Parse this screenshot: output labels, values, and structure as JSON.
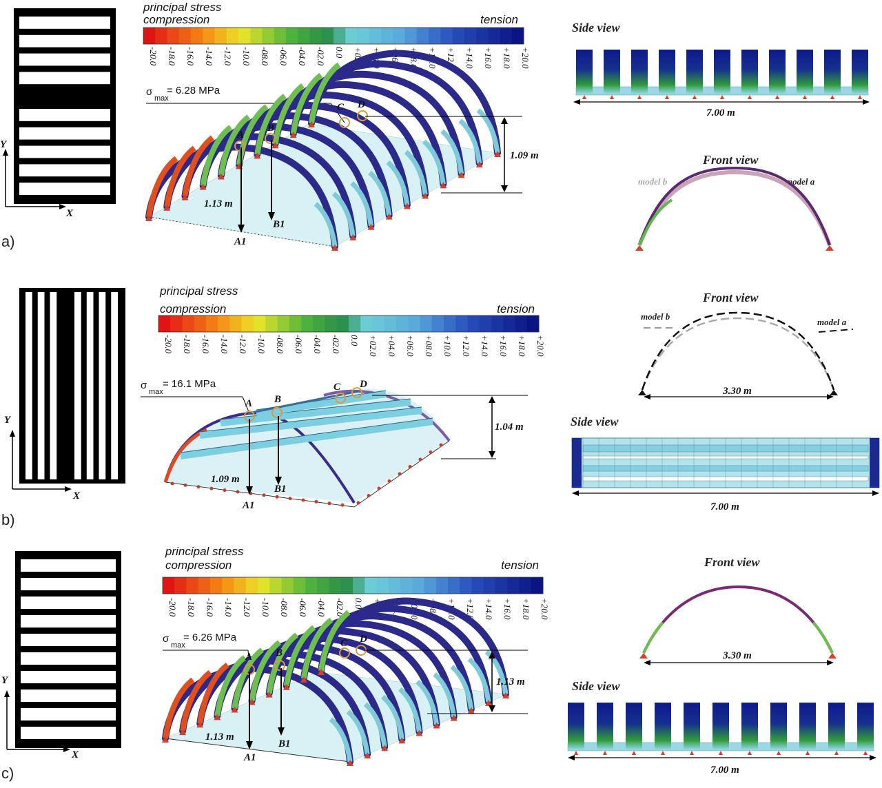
{
  "panels": [
    {
      "id": "a",
      "letter": "a)",
      "pattern": "horizontal",
      "axis_y": "Y",
      "axis_x": "X",
      "scale_title": "principal stress",
      "scale_compression": "compression",
      "scale_tension": "tension",
      "sigma_symbol": "σ",
      "sigma_sub": "max",
      "sigma_value": "= 6.28 MPa",
      "points": {
        "A": "A",
        "B": "B",
        "C": "C",
        "D": "D",
        "A1": "A1",
        "B1": "B1"
      },
      "height_left": "1.13 m",
      "height_right": "1.09 m",
      "views": [
        {
          "title": "Side view",
          "dim": "7.00 m"
        },
        {
          "title": "Front view",
          "dim": "",
          "model_a": "model a",
          "model_b": "model b"
        }
      ]
    },
    {
      "id": "b",
      "letter": "b)",
      "pattern": "vertical",
      "axis_y": "Y",
      "axis_x": "X",
      "scale_title": "principal stress",
      "scale_compression": "compression",
      "scale_tension": "tension",
      "sigma_symbol": "σ",
      "sigma_sub": "max",
      "sigma_value": "= 16.1 MPa",
      "points": {
        "A": "A",
        "B": "B",
        "C": "C",
        "D": "D",
        "A1": "A1",
        "B1": "B1"
      },
      "height_left": "1.09 m",
      "height_right": "1.04 m",
      "views": [
        {
          "title": "Front view",
          "dim": "3.30 m",
          "model_a": "model a",
          "model_b": "model b"
        },
        {
          "title": "Side view",
          "dim": "7.00 m"
        }
      ]
    },
    {
      "id": "c",
      "letter": "c)",
      "pattern": "horizontal",
      "axis_y": "Y",
      "axis_x": "X",
      "scale_title": "principal stress",
      "scale_compression": "compression",
      "scale_tension": "tension",
      "sigma_symbol": "σ",
      "sigma_sub": "max",
      "sigma_value": "= 6.26 MPa",
      "points": {
        "A": "A",
        "B": "B",
        "C": "C",
        "D": "D",
        "A1": "A1",
        "B1": "B1"
      },
      "height_left": "1.13 m",
      "height_right": "1.13 m",
      "views": [
        {
          "title": "Front view",
          "dim": "3.30 m"
        },
        {
          "title": "Side view",
          "dim": "7.00 m"
        }
      ]
    }
  ],
  "scale_ticks": [
    "-20.0",
    "-18.0",
    "-16.0",
    "-14.0",
    "-12.0",
    "-10.0",
    "-08.0",
    "-06.0",
    "-04.0",
    "-02.0",
    "0.0",
    "+02.0",
    "+04.0",
    "+06.0",
    "+08.0",
    "+10.0",
    "+12.0",
    "+14.0",
    "+16.0",
    "+18.0",
    "+20.0"
  ],
  "colors": {
    "compression": "#e8201a",
    "neutral": "#8fd6e0",
    "tension": "#101a8c",
    "green": "#2f9a3a",
    "support": "#d0402c",
    "arch_tension": "#3a2a90",
    "arch_compression": "#c0303a"
  }
}
